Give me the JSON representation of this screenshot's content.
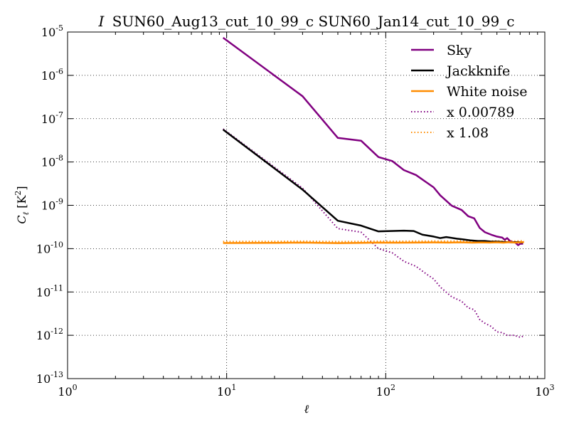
{
  "chart_data": {
    "type": "line",
    "title_prefix": "I",
    "title": "SUN60_Aug13_cut_10_99_c SUN60_Jan14_cut_10_99_c",
    "xlabel": "ℓ",
    "ylabel_main": "C",
    "ylabel_sub": "ℓ",
    "ylabel_unit": "[K",
    "ylabel_unit_exp": "2",
    "ylabel_unit_close": "]",
    "xscale": "log",
    "yscale": "log",
    "xlim": [
      1,
      1000
    ],
    "ylim": [
      1e-13,
      1e-05
    ],
    "grid": true,
    "legend_position": "top-right",
    "x_ticks": [
      {
        "value": 1,
        "base": "10",
        "exp": "0"
      },
      {
        "value": 10,
        "base": "10",
        "exp": "1"
      },
      {
        "value": 100,
        "base": "10",
        "exp": "2"
      },
      {
        "value": 1000,
        "base": "10",
        "exp": "3"
      }
    ],
    "y_ticks": [
      {
        "value": 1e-05,
        "base": "10",
        "exp": "-5"
      },
      {
        "value": 1e-06,
        "base": "10",
        "exp": "-6"
      },
      {
        "value": 1e-07,
        "base": "10",
        "exp": "-7"
      },
      {
        "value": 1e-08,
        "base": "10",
        "exp": "-8"
      },
      {
        "value": 1e-09,
        "base": "10",
        "exp": "-9"
      },
      {
        "value": 1e-10,
        "base": "10",
        "exp": "-10"
      },
      {
        "value": 1e-11,
        "base": "10",
        "exp": "-11"
      },
      {
        "value": 1e-12,
        "base": "10",
        "exp": "-12"
      },
      {
        "value": 1e-13,
        "base": "10",
        "exp": "-13"
      }
    ],
    "series": [
      {
        "name": "Sky",
        "color": "#800080",
        "style": "solid",
        "points": [
          [
            9.5,
            7.4e-06
          ],
          [
            30,
            3.3e-07
          ],
          [
            50,
            3.6e-08
          ],
          [
            70,
            3.1e-08
          ],
          [
            90,
            1.3e-08
          ],
          [
            110,
            1.05e-08
          ],
          [
            130,
            6.5e-09
          ],
          [
            155,
            5e-09
          ],
          [
            180,
            3.4e-09
          ],
          [
            200,
            2.6e-09
          ],
          [
            220,
            1.7e-09
          ],
          [
            260,
            9.8e-10
          ],
          [
            300,
            7.8e-10
          ],
          [
            330,
            5.6e-10
          ],
          [
            360,
            5e-10
          ],
          [
            390,
            3e-10
          ],
          [
            420,
            2.4e-10
          ],
          [
            460,
            2.1e-10
          ],
          [
            500,
            1.9e-10
          ],
          [
            540,
            1.8e-10
          ],
          [
            560,
            1.6e-10
          ],
          [
            580,
            1.75e-10
          ],
          [
            610,
            1.45e-10
          ],
          [
            650,
            1.4e-10
          ],
          [
            680,
            1.2e-10
          ],
          [
            700,
            1.3e-10
          ],
          [
            730,
            1.3e-10
          ]
        ]
      },
      {
        "name": "Jackknife",
        "color": "#000000",
        "style": "solid",
        "points": [
          [
            9.5,
            5.6e-08
          ],
          [
            30,
            2.3e-09
          ],
          [
            50,
            4.4e-10
          ],
          [
            70,
            3.4e-10
          ],
          [
            90,
            2.5e-10
          ],
          [
            130,
            2.6e-10
          ],
          [
            150,
            2.55e-10
          ],
          [
            170,
            2.1e-10
          ],
          [
            200,
            1.9e-10
          ],
          [
            220,
            1.75e-10
          ],
          [
            240,
            1.85e-10
          ],
          [
            280,
            1.7e-10
          ],
          [
            300,
            1.65e-10
          ],
          [
            340,
            1.55e-10
          ],
          [
            380,
            1.5e-10
          ],
          [
            420,
            1.5e-10
          ],
          [
            460,
            1.45e-10
          ],
          [
            500,
            1.45e-10
          ],
          [
            560,
            1.42e-10
          ],
          [
            620,
            1.4e-10
          ],
          [
            680,
            1.42e-10
          ],
          [
            730,
            1.38e-10
          ]
        ]
      },
      {
        "name": "White noise",
        "color": "#ff8c00",
        "style": "solid",
        "points": [
          [
            9.5,
            1.35e-10
          ],
          [
            20,
            1.36e-10
          ],
          [
            30,
            1.38e-10
          ],
          [
            50,
            1.34e-10
          ],
          [
            70,
            1.36e-10
          ],
          [
            90,
            1.38e-10
          ],
          [
            120,
            1.37e-10
          ],
          [
            150,
            1.38e-10
          ],
          [
            200,
            1.39e-10
          ],
          [
            250,
            1.38e-10
          ],
          [
            300,
            1.4e-10
          ],
          [
            350,
            1.37e-10
          ],
          [
            400,
            1.39e-10
          ],
          [
            450,
            1.38e-10
          ],
          [
            500,
            1.4e-10
          ],
          [
            550,
            1.37e-10
          ],
          [
            600,
            1.41e-10
          ],
          [
            650,
            1.38e-10
          ],
          [
            700,
            1.4e-10
          ],
          [
            740,
            1.42e-10
          ]
        ]
      },
      {
        "name": "x 0.00789",
        "color": "#800080",
        "style": "dotted",
        "points": [
          [
            9.5,
            5.8e-08
          ],
          [
            30,
            2.5e-09
          ],
          [
            50,
            2.9e-10
          ],
          [
            70,
            2.4e-10
          ],
          [
            90,
            1e-10
          ],
          [
            110,
            8e-11
          ],
          [
            130,
            5.1e-11
          ],
          [
            155,
            3.9e-11
          ],
          [
            180,
            2.6e-11
          ],
          [
            200,
            2e-11
          ],
          [
            220,
            1.3e-11
          ],
          [
            260,
            7.7e-12
          ],
          [
            300,
            6.1e-12
          ],
          [
            330,
            4.3e-12
          ],
          [
            360,
            3.9e-12
          ],
          [
            390,
            2.3e-12
          ],
          [
            420,
            1.9e-12
          ],
          [
            460,
            1.6e-12
          ],
          [
            500,
            1.2e-12
          ],
          [
            540,
            1.15e-12
          ],
          [
            580,
            1e-12
          ],
          [
            640,
            1e-12
          ],
          [
            700,
            9e-13
          ],
          [
            730,
            9.5e-13
          ]
        ]
      },
      {
        "name": "x 1.08",
        "color": "#ff8c00",
        "style": "dotted",
        "points": [
          [
            9.5,
            1.46e-10
          ],
          [
            20,
            1.47e-10
          ],
          [
            30,
            1.49e-10
          ],
          [
            50,
            1.45e-10
          ],
          [
            70,
            1.47e-10
          ],
          [
            90,
            1.49e-10
          ],
          [
            120,
            1.48e-10
          ],
          [
            150,
            1.49e-10
          ],
          [
            200,
            1.5e-10
          ],
          [
            250,
            1.49e-10
          ],
          [
            300,
            1.51e-10
          ],
          [
            350,
            1.48e-10
          ],
          [
            400,
            1.5e-10
          ],
          [
            450,
            1.49e-10
          ],
          [
            500,
            1.51e-10
          ],
          [
            550,
            1.48e-10
          ],
          [
            600,
            1.52e-10
          ],
          [
            650,
            1.49e-10
          ],
          [
            700,
            1.51e-10
          ],
          [
            740,
            1.53e-10
          ]
        ]
      }
    ]
  }
}
